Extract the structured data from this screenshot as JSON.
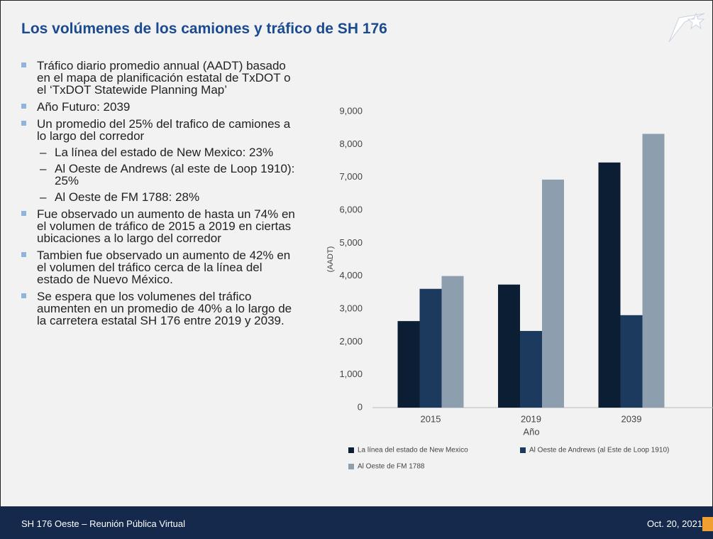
{
  "header": {
    "title": "Los volúmenes de los camiones y tráfico de SH 176"
  },
  "bullets": [
    {
      "text": "Tráfico diario promedio annual (AADT) basado en el mapa de planificación estatal de TxDOT o el ‘TxDOT Statewide Planning Map’"
    },
    {
      "text": "Año Futuro: 2039"
    },
    {
      "text": "Un promedio del 25% del trafico de camiones a lo largo del corredor",
      "sub": [
        "La línea del estado de New Mexico: 23%",
        "Al Oeste de Andrews (al este de Loop 1910): 25%",
        "Al Oeste de FM 1788: 28%"
      ]
    },
    {
      "text": "Fue observado un aumento de hasta un 74% en el volumen de tráfico de 2015 a 2019 en ciertas ubicaciones a lo largo del corredor"
    },
    {
      "text": "Tambien fue observado un aumento de 42% en el volumen del tráfico cerca de la línea del estado de Nuevo México."
    },
    {
      "text": "Se espera que los volumenes del tráfico aumenten en un promedio de 40% a lo largo de la carretera estatal SH 176 entre 2019 y 2039."
    }
  ],
  "chart_data": {
    "type": "bar",
    "x_label": "Año",
    "y_label": "(AADT)",
    "categories": [
      "2015",
      "2019",
      "2039"
    ],
    "series": [
      {
        "name": "La línea del estado de New Mexico",
        "color": "#0c1e33",
        "values": [
          2630,
          3740,
          7450
        ]
      },
      {
        "name": "Al Oeste de Andrews (al Este de Loop 1910)",
        "color": "#1b3a5e",
        "values": [
          3610,
          2330,
          2810
        ]
      },
      {
        "name": "Al Oeste de FM 1788",
        "color": "#8d9eaf",
        "values": [
          4000,
          6930,
          8320
        ]
      }
    ],
    "ylim": [
      0,
      9000
    ],
    "yticks": [
      0,
      {
        "value": 1000,
        "label": "1,000"
      },
      {
        "value": 2000,
        "label": "2,000"
      },
      {
        "value": 3000,
        "label": "3,000"
      },
      {
        "value": 4000,
        "label": "4,000"
      },
      {
        "value": 5000,
        "label": "5,000"
      },
      {
        "value": 6000,
        "label": "6,000"
      },
      {
        "value": 7000,
        "label": "7,000"
      },
      {
        "value": 8000,
        "label": "8,000"
      },
      {
        "value": 9000,
        "label": "9,000"
      }
    ]
  },
  "footer": {
    "left": "SH 176 Oeste – Reunión Pública Virtual",
    "date": "Oct. 20, 2021"
  }
}
